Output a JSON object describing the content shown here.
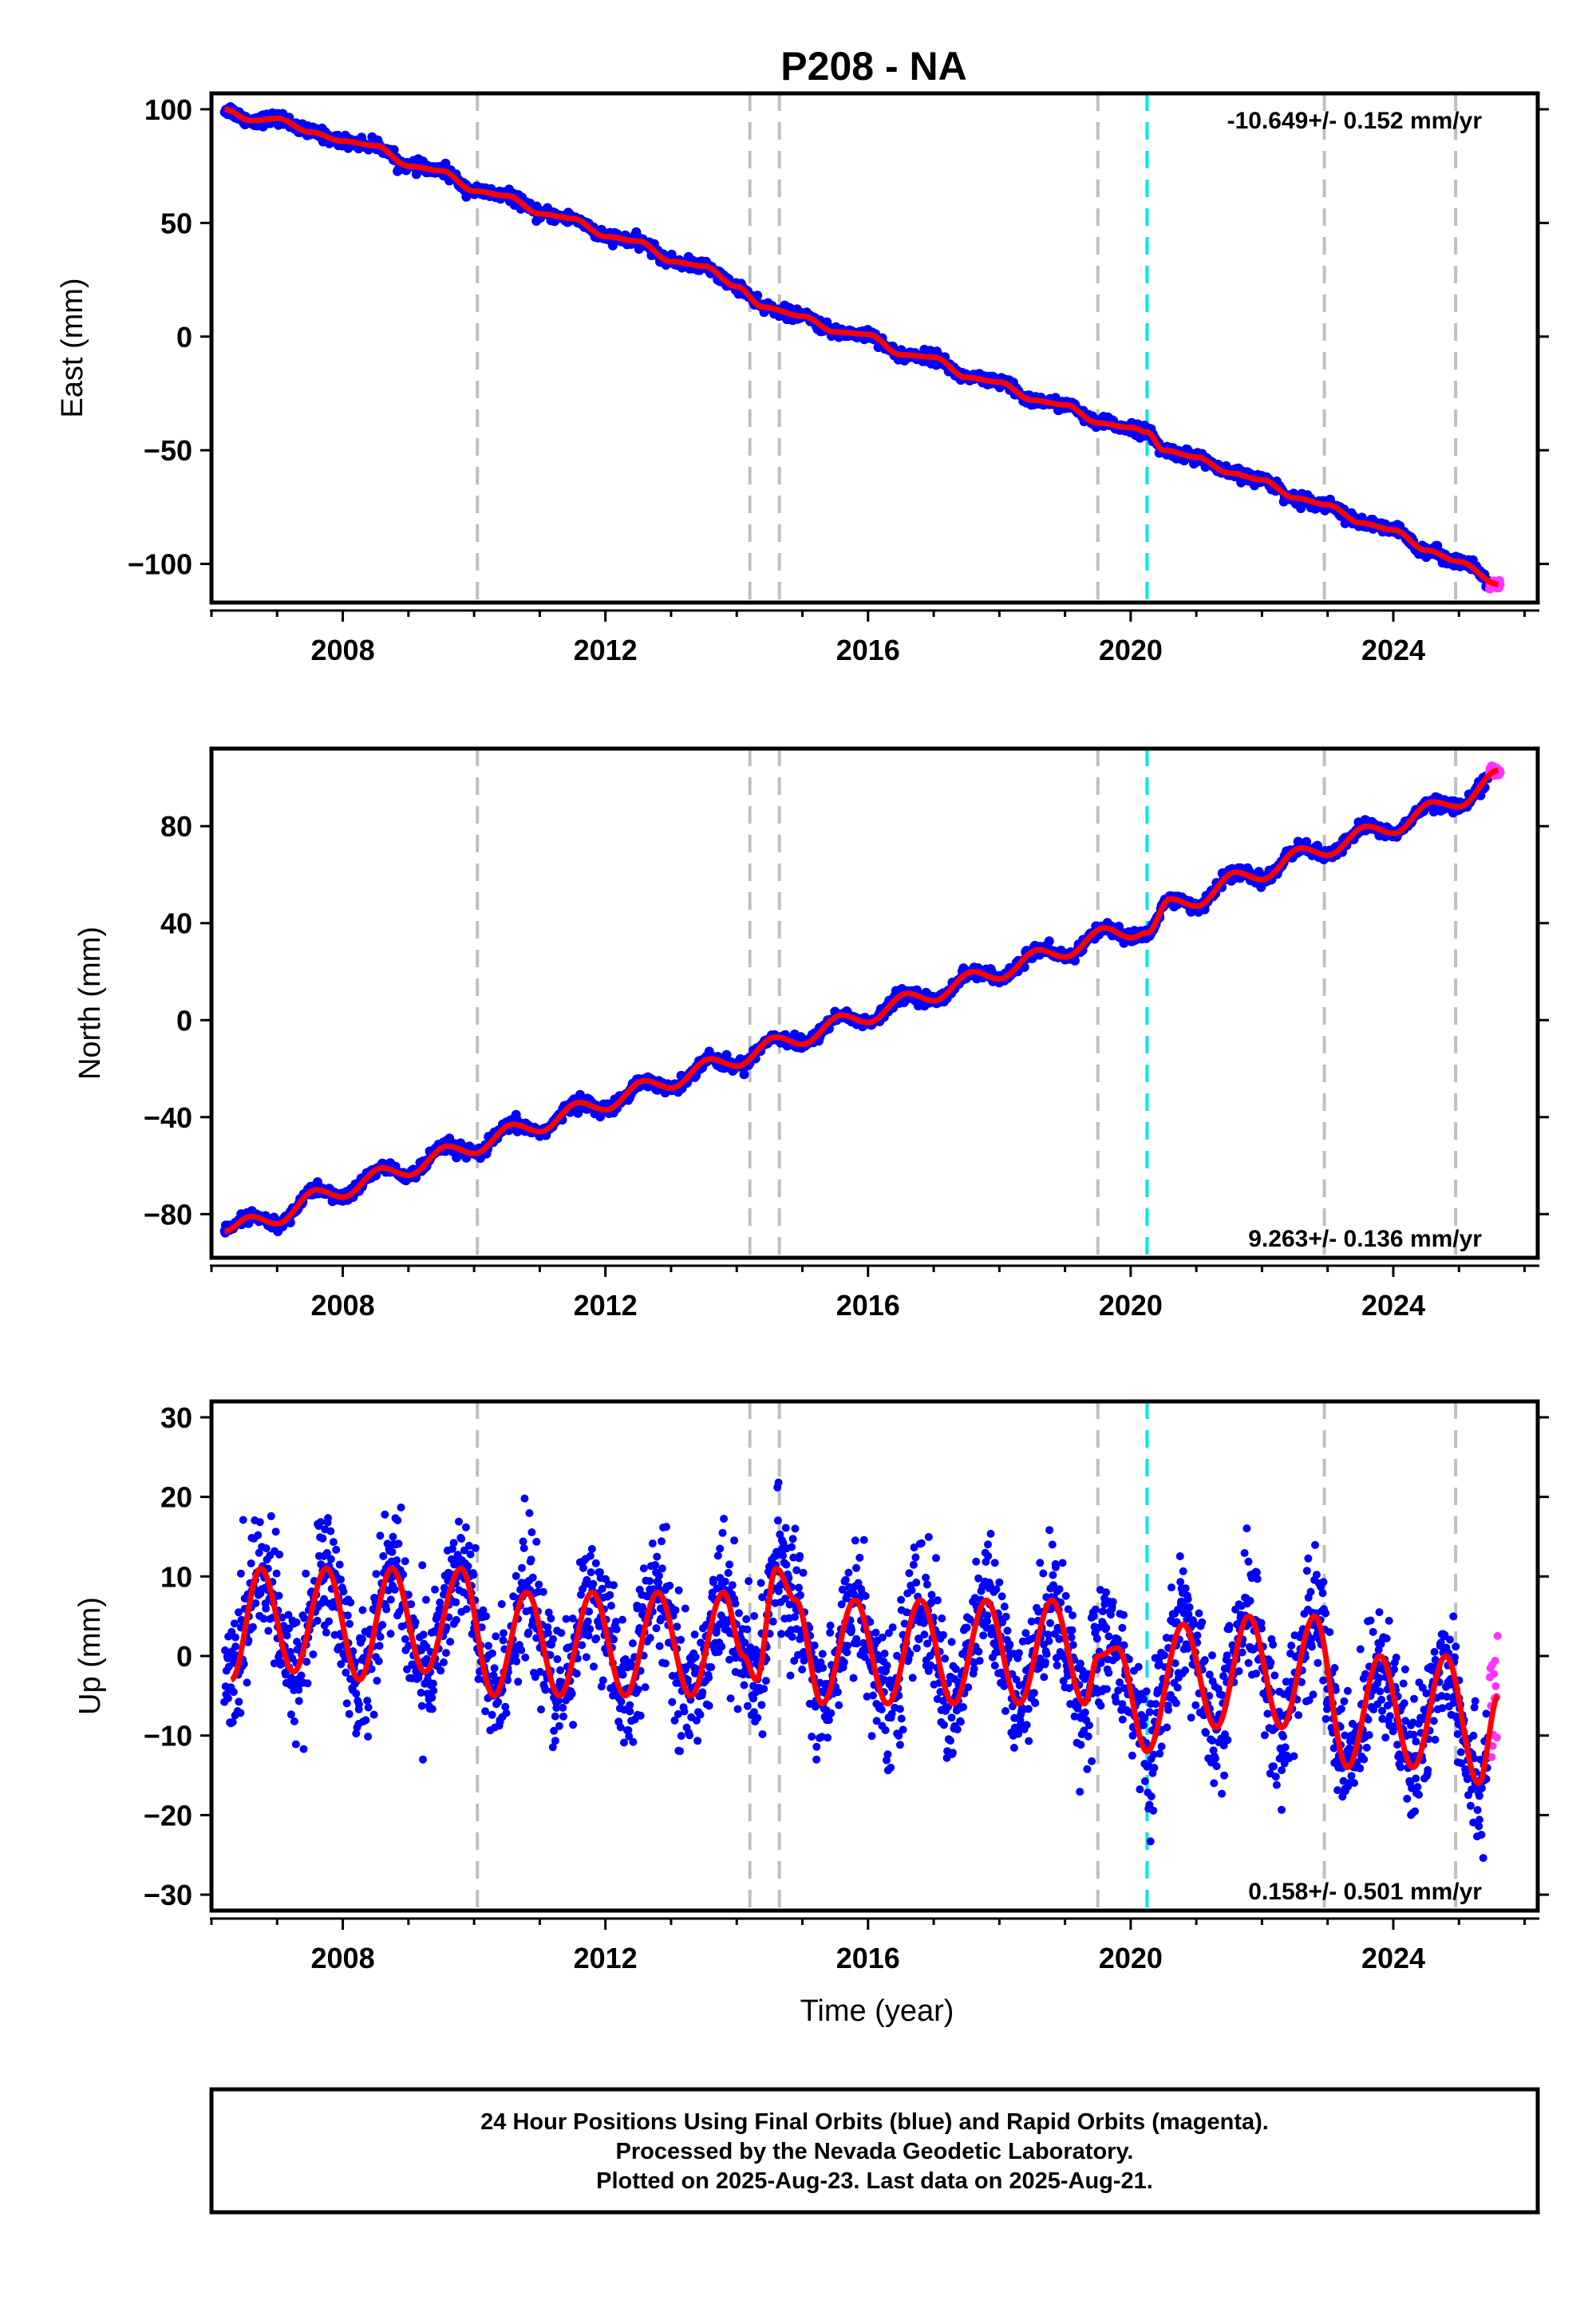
{
  "title": "P208 - NA",
  "colors": {
    "final_orbits": "#0000ff",
    "rapid_orbits": "#ff33ff",
    "model_fit": "#ff0000",
    "event_line": "#bfbfbf",
    "equipment_change": "#00e5ee"
  },
  "footer": {
    "line1": "24 Hour Positions Using Final Orbits (blue) and Rapid Orbits (magenta).",
    "line2": "Processed by the Nevada Geodetic Laboratory.",
    "line3": "Plotted on 2025-Aug-23. Last data on 2025-Aug-21."
  },
  "chart_data": [
    {
      "type": "scatter",
      "component": "east",
      "ylabel": "East (mm)",
      "xlabel": "",
      "rate_label": "-10.649+/- 0.152 mm/yr",
      "rate_position": "top-right",
      "xlim": [
        2006.0,
        2026.2
      ],
      "ylim": [
        -117,
        107
      ],
      "x_ticks": [
        2008,
        2012,
        2016,
        2020,
        2024
      ],
      "y_ticks": [
        100,
        50,
        0,
        -50,
        -100
      ],
      "event_lines": [
        2010.05,
        2014.2,
        2014.65,
        2019.5,
        2022.95,
        2024.95
      ],
      "equipment_change_lines": [
        2020.25
      ],
      "series": [
        {
          "values": [
            [
              2006.2,
              100
            ],
            [
              2006.6,
              95
            ],
            [
              2007.0,
              96
            ],
            [
              2007.5,
              90
            ],
            [
              2008.0,
              86
            ],
            [
              2008.5,
              84
            ],
            [
              2009.0,
              75
            ],
            [
              2009.5,
              73
            ],
            [
              2010.0,
              64
            ],
            [
              2010.5,
              62
            ],
            [
              2011.0,
              54
            ],
            [
              2011.5,
              52
            ],
            [
              2012.0,
              44
            ],
            [
              2012.5,
              42
            ],
            [
              2013.0,
              33
            ],
            [
              2013.5,
              31
            ],
            [
              2014.0,
              22
            ],
            [
              2014.4,
              13
            ],
            [
              2015.0,
              9
            ],
            [
              2015.5,
              2
            ],
            [
              2016.0,
              1
            ],
            [
              2016.5,
              -8
            ],
            [
              2017.0,
              -9
            ],
            [
              2017.5,
              -18
            ],
            [
              2018.0,
              -20
            ],
            [
              2018.5,
              -28
            ],
            [
              2019.0,
              -30
            ],
            [
              2019.5,
              -38
            ],
            [
              2020.0,
              -40
            ],
            [
              2020.25,
              -42
            ],
            [
              2020.5,
              -50
            ],
            [
              2021.0,
              -53
            ],
            [
              2021.5,
              -60
            ],
            [
              2022.0,
              -63
            ],
            [
              2022.5,
              -71
            ],
            [
              2023.0,
              -74
            ],
            [
              2023.5,
              -82
            ],
            [
              2024.0,
              -85
            ],
            [
              2024.5,
              -94
            ],
            [
              2025.0,
              -99
            ],
            [
              2025.6,
              -109
            ]
          ]
        }
      ]
    },
    {
      "type": "scatter",
      "component": "north",
      "ylabel": "North (mm)",
      "xlabel": "",
      "rate_label": "9.263+/- 0.136 mm/yr",
      "rate_position": "bottom-right",
      "xlim": [
        2006.0,
        2026.2
      ],
      "ylim": [
        -98,
        112
      ],
      "x_ticks": [
        2008,
        2012,
        2016,
        2020,
        2024
      ],
      "y_ticks": [
        80,
        40,
        0,
        -40,
        -80
      ],
      "event_lines": [
        2010.05,
        2014.2,
        2014.65,
        2019.5,
        2022.95,
        2024.95
      ],
      "equipment_change_lines": [
        2020.25
      ],
      "series": [
        {
          "values": [
            [
              2006.2,
              -87
            ],
            [
              2006.6,
              -81
            ],
            [
              2007.0,
              -84
            ],
            [
              2007.6,
              -70
            ],
            [
              2008.0,
              -73
            ],
            [
              2008.6,
              -61
            ],
            [
              2009.0,
              -64
            ],
            [
              2009.6,
              -52
            ],
            [
              2010.0,
              -55
            ],
            [
              2010.6,
              -43
            ],
            [
              2011.0,
              -46
            ],
            [
              2011.6,
              -34
            ],
            [
              2012.0,
              -37
            ],
            [
              2012.6,
              -25
            ],
            [
              2013.0,
              -28
            ],
            [
              2013.6,
              -16
            ],
            [
              2014.0,
              -19
            ],
            [
              2014.6,
              -7
            ],
            [
              2015.0,
              -10
            ],
            [
              2015.6,
              2
            ],
            [
              2016.0,
              -1
            ],
            [
              2016.6,
              11
            ],
            [
              2017.0,
              8
            ],
            [
              2017.6,
              20
            ],
            [
              2018.0,
              17
            ],
            [
              2018.6,
              29
            ],
            [
              2019.0,
              26
            ],
            [
              2019.6,
              38
            ],
            [
              2020.0,
              34
            ],
            [
              2020.25,
              36
            ],
            [
              2020.6,
              50
            ],
            [
              2021.0,
              47
            ],
            [
              2021.6,
              61
            ],
            [
              2022.0,
              58
            ],
            [
              2022.6,
              71
            ],
            [
              2023.0,
              68
            ],
            [
              2023.6,
              80
            ],
            [
              2024.0,
              77
            ],
            [
              2024.6,
              90
            ],
            [
              2025.0,
              88
            ],
            [
              2025.6,
              103
            ]
          ]
        }
      ]
    },
    {
      "type": "scatter",
      "component": "up",
      "ylabel": "Up (mm)",
      "xlabel": "Time (year)",
      "rate_label": "0.158+/- 0.501 mm/yr",
      "rate_position": "bottom-right",
      "xlim": [
        2006.0,
        2026.2
      ],
      "ylim": [
        -32,
        32
      ],
      "x_ticks": [
        2008,
        2012,
        2016,
        2020,
        2024
      ],
      "y_ticks": [
        30,
        20,
        10,
        0,
        -10,
        -20,
        -30
      ],
      "event_lines": [
        2010.05,
        2014.2,
        2014.65,
        2019.5,
        2022.95,
        2024.95
      ],
      "equipment_change_lines": [
        2020.25
      ],
      "series": [
        {
          "values": [
            [
              2006.3,
              -3
            ],
            [
              2006.75,
              11
            ],
            [
              2007.25,
              -2
            ],
            [
              2007.75,
              11
            ],
            [
              2008.25,
              -3
            ],
            [
              2008.75,
              11
            ],
            [
              2009.25,
              -2
            ],
            [
              2009.8,
              11
            ],
            [
              2010.3,
              -5
            ],
            [
              2010.8,
              8
            ],
            [
              2011.3,
              -5
            ],
            [
              2011.8,
              8
            ],
            [
              2012.3,
              -5
            ],
            [
              2012.8,
              8
            ],
            [
              2013.3,
              -5
            ],
            [
              2013.8,
              8
            ],
            [
              2014.1,
              0
            ],
            [
              2014.3,
              -3
            ],
            [
              2014.6,
              11
            ],
            [
              2014.9,
              7
            ],
            [
              2015.3,
              -6
            ],
            [
              2015.8,
              7
            ],
            [
              2016.3,
              -6
            ],
            [
              2016.8,
              7
            ],
            [
              2017.3,
              -6
            ],
            [
              2017.8,
              7
            ],
            [
              2018.3,
              -6
            ],
            [
              2018.8,
              7
            ],
            [
              2019.3,
              -6
            ],
            [
              2019.5,
              0
            ],
            [
              2019.8,
              1
            ],
            [
              2020.25,
              -12
            ],
            [
              2020.8,
              4
            ],
            [
              2021.3,
              -9
            ],
            [
              2021.8,
              5
            ],
            [
              2022.3,
              -9
            ],
            [
              2022.8,
              5
            ],
            [
              2023.3,
              -14
            ],
            [
              2023.8,
              0
            ],
            [
              2024.3,
              -14
            ],
            [
              2024.8,
              0
            ],
            [
              2025.3,
              -16
            ],
            [
              2025.6,
              -5
            ]
          ]
        }
      ]
    }
  ]
}
